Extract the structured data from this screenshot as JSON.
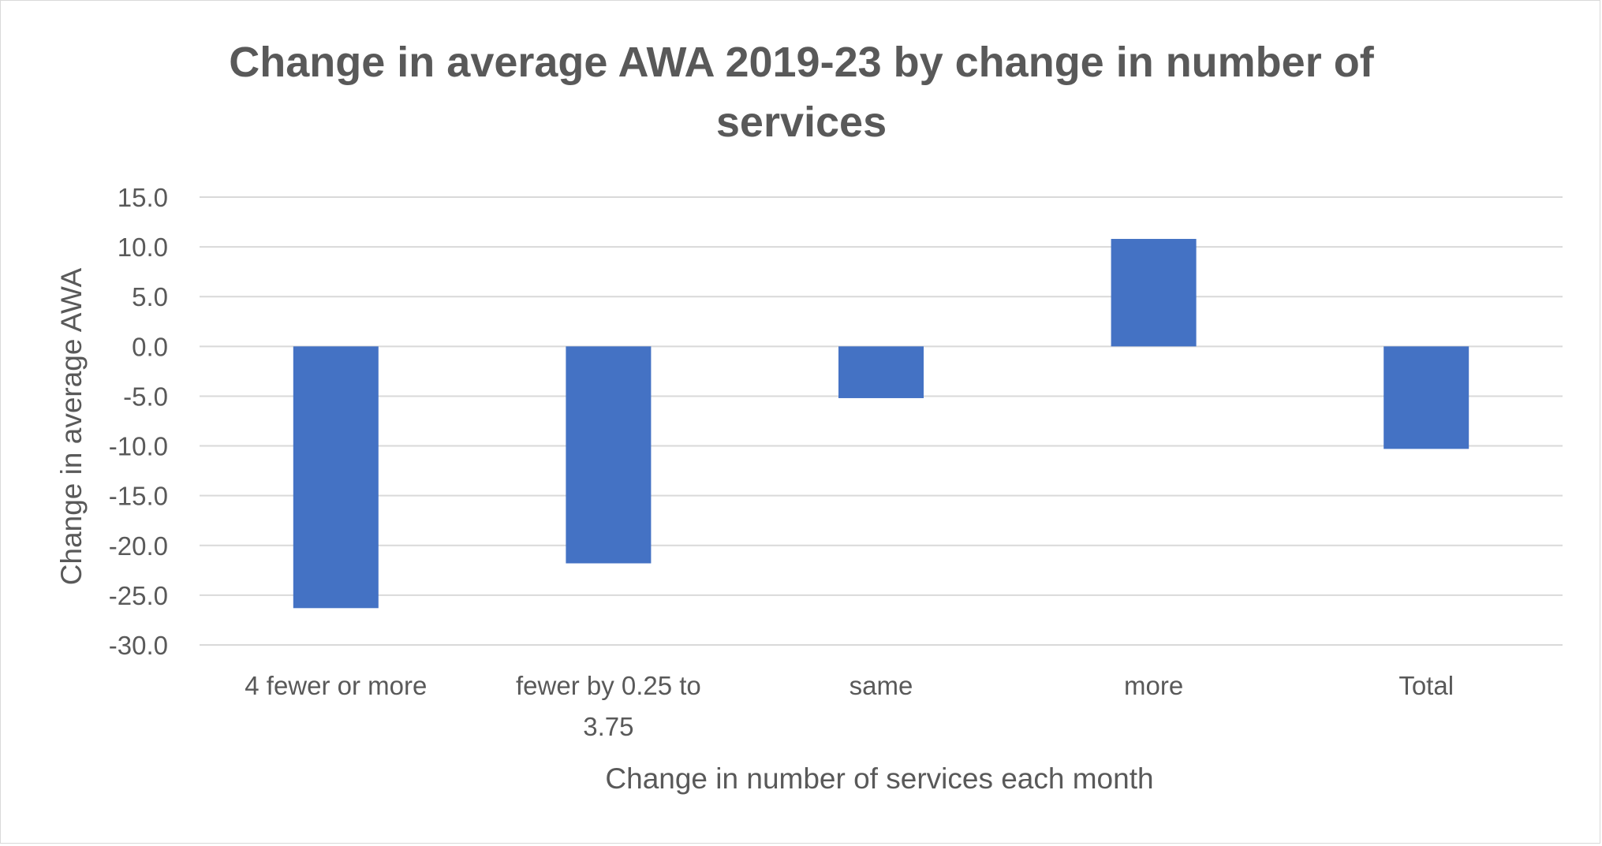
{
  "chart_data": {
    "type": "bar",
    "title_lines": [
      "Change in average AWA 2019-23 by change in number of",
      "services"
    ],
    "xlabel": "Change in number of services each month",
    "ylabel": "Change in average AWA",
    "categories": [
      "4 fewer or more",
      "fewer by 0.25 to 3.75",
      "same",
      "more",
      "Total"
    ],
    "category_label_lines": [
      [
        "4 fewer or more"
      ],
      [
        "fewer by 0.25 to",
        "3.75"
      ],
      [
        "same"
      ],
      [
        "more"
      ],
      [
        "Total"
      ]
    ],
    "values": [
      -26.3,
      -21.8,
      -5.2,
      10.8,
      -10.3
    ],
    "ylim": [
      -30,
      15
    ],
    "yticks": [
      15,
      10,
      5,
      0,
      -5,
      -10,
      -15,
      -20,
      -25,
      -30
    ],
    "ytick_labels": [
      "15.0",
      "10.0",
      "5.0",
      "0.0",
      "-5.0",
      "-10.0",
      "-15.0",
      "-20.0",
      "-25.0",
      "-30.0"
    ],
    "grid": true,
    "legend": "none",
    "bar_color": "#4472C4"
  }
}
